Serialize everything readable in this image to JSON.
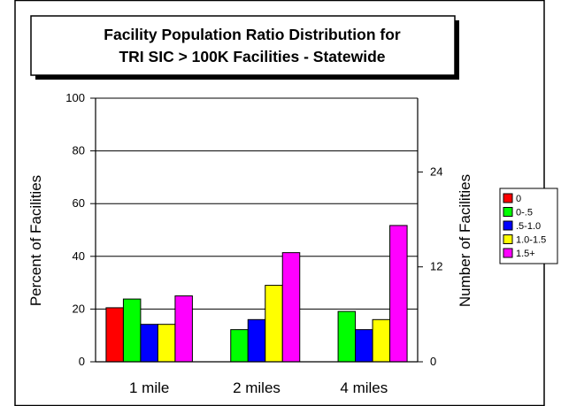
{
  "chart_data": {
    "type": "bar",
    "title_lines": [
      "Facility Population Ratio Distribution for",
      "TRI SIC > 100K Facilities - Statewide"
    ],
    "ylabel": "Percent of Facilities",
    "ylabel_right": "Number of Facilities",
    "ylim": [
      0,
      100
    ],
    "yticks": [
      "0",
      "20",
      "40",
      "60",
      "80",
      "100"
    ],
    "ylim_right": [
      0,
      33.33
    ],
    "yticks_right": [
      "0",
      "12",
      "24"
    ],
    "grid": true,
    "legend_position": "right",
    "categories": [
      "1 mile",
      "2 miles",
      "4 miles"
    ],
    "series": [
      {
        "name": "0",
        "color": "#ff0000",
        "values": [
          20.5,
          0,
          0
        ]
      },
      {
        "name": "0-.5",
        "color": "#00ff00",
        "values": [
          23.8,
          12.2,
          19.1
        ]
      },
      {
        "name": ".5-1.0",
        "color": "#0000ff",
        "values": [
          14.2,
          16.0,
          12.2
        ]
      },
      {
        "name": "1.0-1.5",
        "color": "#ffff00",
        "values": [
          14.2,
          29.0,
          16.0
        ]
      },
      {
        "name": "1.5+",
        "color": "#ff00ff",
        "values": [
          25.0,
          41.4,
          51.7
        ]
      }
    ]
  }
}
